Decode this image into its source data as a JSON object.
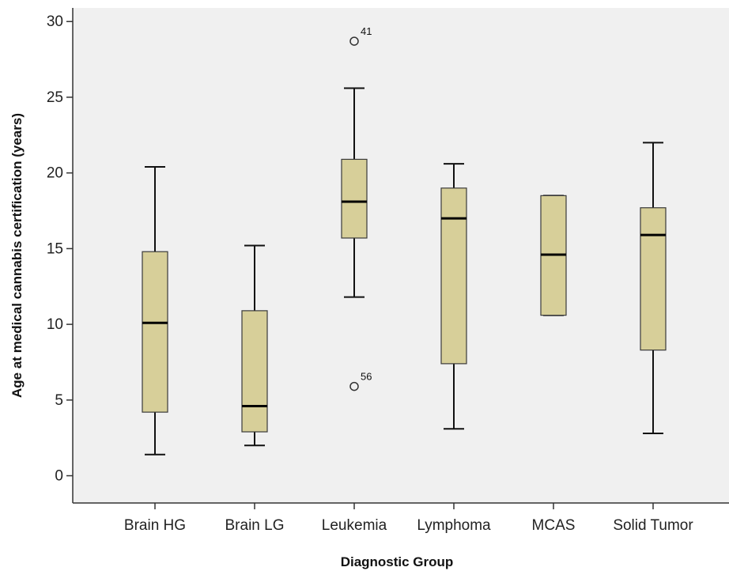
{
  "chart_data": {
    "type": "boxplot",
    "title": "",
    "xlabel": "Diagnostic Group",
    "ylabel": "Age at medical cannabis certification (years)",
    "ylim": [
      -1.8,
      30.9
    ],
    "yticks": [
      0,
      5,
      10,
      15,
      20,
      25,
      30
    ],
    "grid": false,
    "colors": {
      "box_fill": "#d7cf99",
      "box_stroke": "#3a3a3a",
      "plot_bg": "#f0f0f0",
      "median": "#000000"
    },
    "categories": [
      "Brain HG",
      "Brain LG",
      "Leukemia",
      "Lymphoma",
      "MCAS",
      "Solid Tumor"
    ],
    "boxes": [
      {
        "category": "Brain HG",
        "whisker_low": 1.4,
        "q1": 4.2,
        "median": 10.1,
        "q3": 14.8,
        "whisker_high": 20.4
      },
      {
        "category": "Brain LG",
        "whisker_low": 2.0,
        "q1": 2.9,
        "median": 4.6,
        "q3": 10.9,
        "whisker_high": 15.2
      },
      {
        "category": "Leukemia",
        "whisker_low": 11.8,
        "q1": 15.7,
        "median": 18.1,
        "q3": 20.9,
        "whisker_high": 25.6
      },
      {
        "category": "Lymphoma",
        "whisker_low": 3.1,
        "q1": 7.4,
        "median": 17.0,
        "q3": 19.0,
        "whisker_high": 20.6
      },
      {
        "category": "MCAS",
        "whisker_low": 10.6,
        "q1": 10.6,
        "median": 14.6,
        "q3": 18.5,
        "whisker_high": 18.5
      },
      {
        "category": "Solid Tumor",
        "whisker_low": 2.8,
        "q1": 8.3,
        "median": 15.9,
        "q3": 17.7,
        "whisker_high": 22.0
      }
    ],
    "outliers": [
      {
        "category": "Leukemia",
        "value": 28.7,
        "label": "41"
      },
      {
        "category": "Leukemia",
        "value": 5.9,
        "label": "56"
      }
    ]
  }
}
